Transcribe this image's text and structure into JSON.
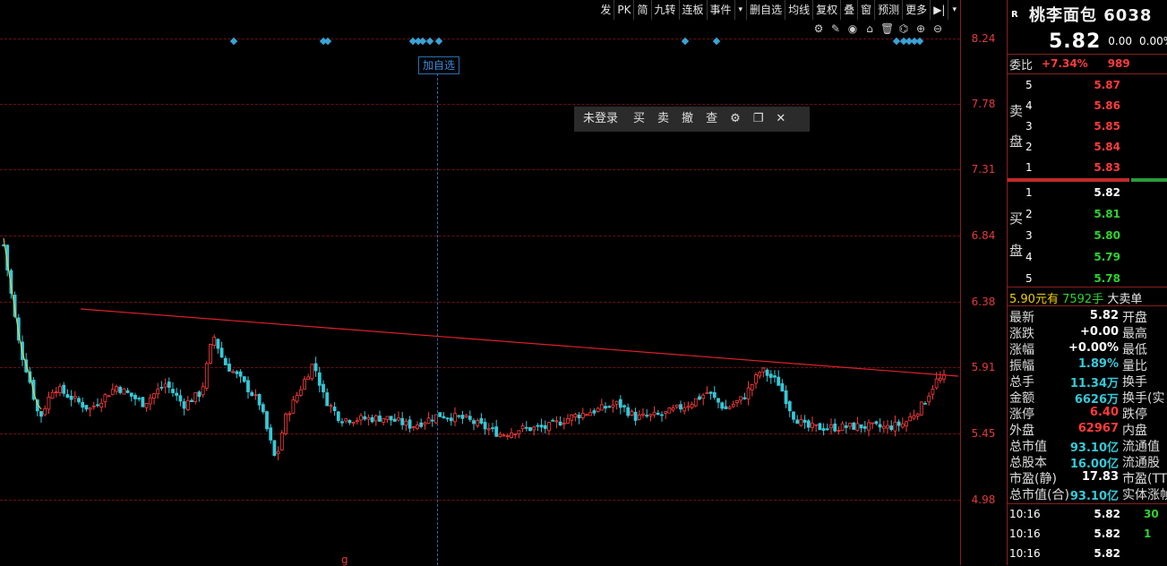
{
  "toolbar": {
    "items": [
      "发",
      "PK",
      "简",
      "九转",
      "连板",
      "事件",
      "▾",
      "删自选",
      "均线",
      "复权",
      "叠",
      "窗",
      "预测",
      "更多",
      "▶|",
      "▾"
    ]
  },
  "chart_icons": [
    "settings-icon",
    "pen-icon",
    "eye-icon",
    "camera-icon",
    "trash-icon",
    "lock-icon",
    "zoom-in-icon",
    "zoom-out-icon"
  ],
  "cursor_tag": "加自选",
  "trade_toolbar": {
    "login": "未登录",
    "buy": "买",
    "sell": "卖",
    "cancel": "撤",
    "query": "查",
    "settings_icon": "⚙",
    "restore_icon": "❐",
    "close_icon": "✕"
  },
  "price_axis": [
    "8.24",
    "7.78",
    "7.31",
    "6.84",
    "6.38",
    "5.91",
    "5.45",
    "4.98"
  ],
  "bottom_label": "g",
  "colors": {
    "up": "#ff3b3b",
    "down": "#35c9d8",
    "trend": "#e0202a",
    "grid": "#6b1111",
    "accent_blue": "#3aa3d7"
  },
  "quote": {
    "flag": "R",
    "name": "桃李面包 6038",
    "price": "5.82",
    "change": "0.00",
    "change_pct": "0.00%"
  },
  "weibi": {
    "label": "委比",
    "pct": "+7.34%",
    "diff": "989"
  },
  "sell_side": {
    "label_top": "卖",
    "label_bottom": "盘",
    "levels": [
      {
        "lvl": "5",
        "price": "5.87"
      },
      {
        "lvl": "4",
        "price": "5.86"
      },
      {
        "lvl": "3",
        "price": "5.85"
      },
      {
        "lvl": "2",
        "price": "5.84"
      },
      {
        "lvl": "1",
        "price": "5.83"
      }
    ]
  },
  "buy_side": {
    "label_top": "买",
    "label_bottom": "盘",
    "levels": [
      {
        "lvl": "1",
        "price": "5.82"
      },
      {
        "lvl": "2",
        "price": "5.81"
      },
      {
        "lvl": "3",
        "price": "5.80"
      },
      {
        "lvl": "4",
        "price": "5.79"
      },
      {
        "lvl": "5",
        "price": "5.78"
      }
    ]
  },
  "big_order": {
    "price": "5.90元有",
    "volume": "7592手",
    "text": "大卖单"
  },
  "stats": [
    {
      "l1": "最新",
      "v1": "5.82",
      "c1": "white",
      "l2": "开盘"
    },
    {
      "l1": "涨跌",
      "v1": "+0.00",
      "c1": "white",
      "l2": "最高"
    },
    {
      "l1": "涨幅",
      "v1": "+0.00%",
      "c1": "white",
      "l2": "最低"
    },
    {
      "l1": "振幅",
      "v1": "1.89%",
      "c1": "cyan",
      "l2": "量比"
    },
    {
      "l1": "总手",
      "v1": "11.34万",
      "c1": "cyan",
      "l2": "换手"
    },
    {
      "l1": "金额",
      "v1": "6626万",
      "c1": "cyan",
      "l2": "换手(实"
    },
    {
      "l1": "涨停",
      "v1": "6.40",
      "c1": "red",
      "l2": "跌停"
    },
    {
      "l1": "外盘",
      "v1": "62967",
      "c1": "red",
      "l2": "内盘"
    },
    {
      "l1": "总市值",
      "v1": "93.10亿",
      "c1": "cyan",
      "l2": "流通值"
    },
    {
      "l1": "总股本",
      "v1": "16.00亿",
      "c1": "cyan",
      "l2": "流通股"
    },
    {
      "l1": "市盈(静)",
      "v1": "17.83",
      "c1": "white",
      "l2": "市盈(TT"
    },
    {
      "l1": "总市值(合)",
      "v1": "93.10亿",
      "c1": "cyan",
      "l2": "实体涨帧"
    }
  ],
  "ticks": [
    {
      "time": "10:16",
      "price": "5.82",
      "vol": "30"
    },
    {
      "time": "10:16",
      "price": "5.82",
      "vol": "1"
    },
    {
      "time": "10:16",
      "price": "5.82",
      "vol": ""
    }
  ]
}
